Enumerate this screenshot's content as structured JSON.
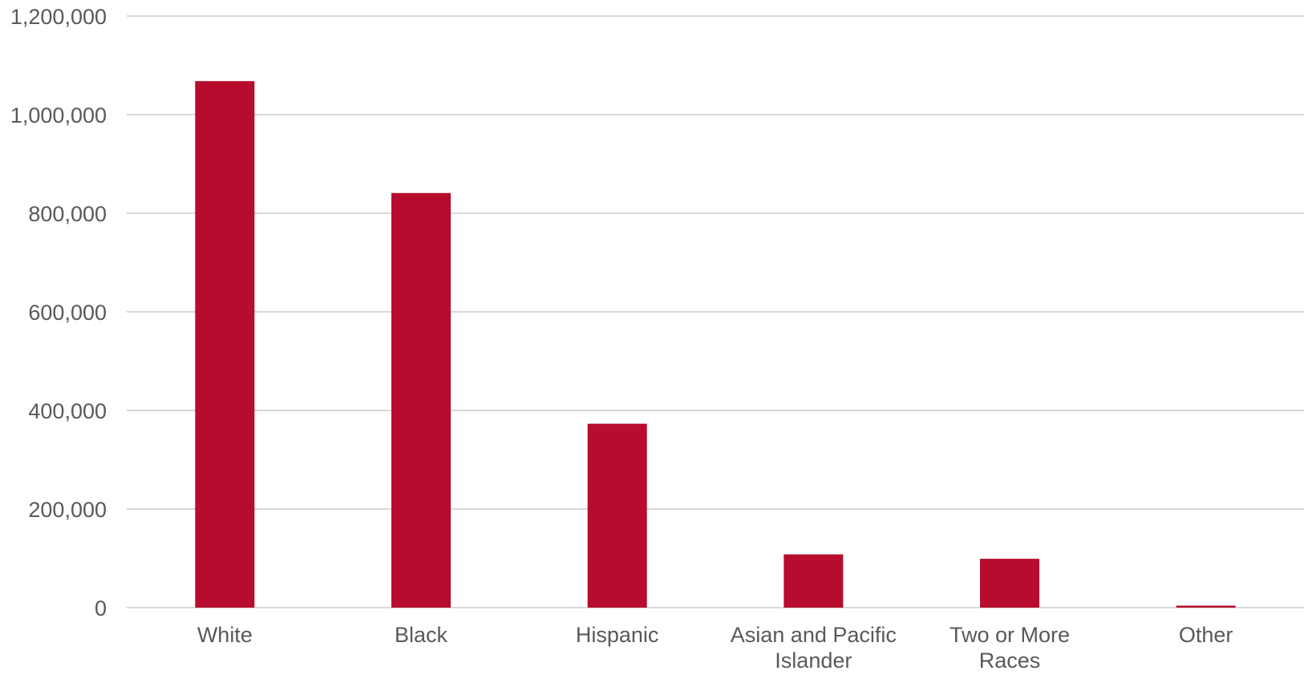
{
  "chart_data": {
    "type": "bar",
    "categories": [
      "White",
      "Black",
      "Hispanic",
      "Asian and Pacific Islander",
      "Two or More Races",
      "Other"
    ],
    "category_label_lines": [
      [
        "White"
      ],
      [
        "Black"
      ],
      [
        "Hispanic"
      ],
      [
        "Asian and Pacific",
        "Islander"
      ],
      [
        "Two or More",
        "Races"
      ],
      [
        "Other"
      ]
    ],
    "values": [
      1068000,
      841000,
      373000,
      108000,
      99000,
      4000
    ],
    "ylim": [
      0,
      1200000
    ],
    "y_ticks": [
      0,
      200000,
      400000,
      600000,
      800000,
      1000000,
      1200000
    ],
    "y_tick_labels": [
      "0",
      "200,000",
      "400,000",
      "600,000",
      "800,000",
      "1,000,000",
      "1,200,000"
    ],
    "title": "",
    "xlabel": "",
    "ylabel": "",
    "grid": true,
    "legend": "none",
    "bar_color": "#b70c2e",
    "grid_color": "#d9d9d9",
    "text_color": "#595959"
  }
}
